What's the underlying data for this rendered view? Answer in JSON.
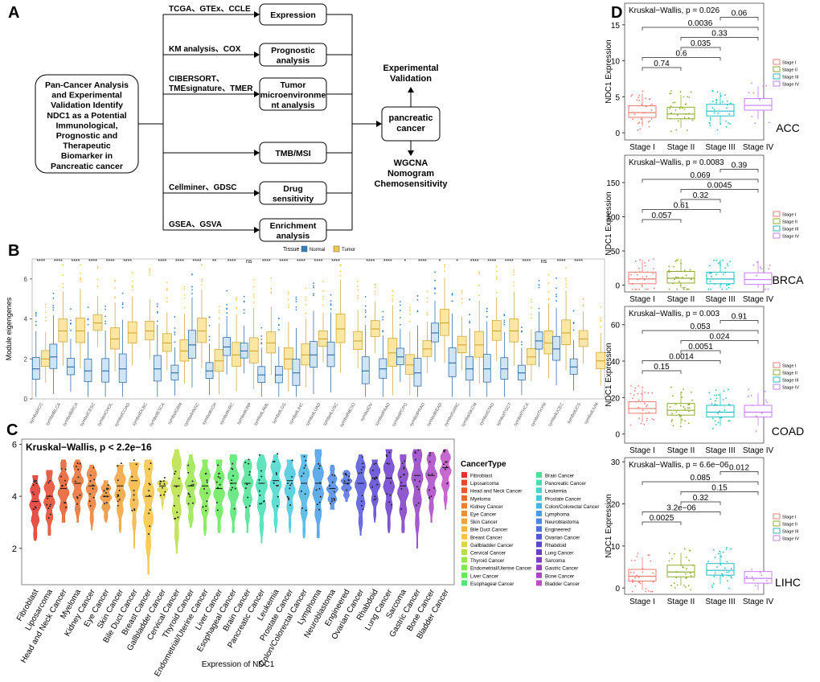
{
  "panel_labels": {
    "a": "A",
    "b": "B",
    "c": "C",
    "d": "D"
  },
  "panelA": {
    "center": [
      "Pan-Cancer Analysis",
      "and Experimental",
      "Validation Identify",
      "NDC1 as a Potential",
      "Immunological,",
      "Prognostic and",
      "Therapeutic",
      "Biomarker in",
      "Pancreatic cancer"
    ],
    "rows": [
      {
        "method": "TCGA、GTEx、CCLE",
        "box": [
          "Expression"
        ]
      },
      {
        "method": "KM analysis、COX",
        "box": [
          "Prognostic",
          "analysis"
        ]
      },
      {
        "method": [
          "CIBERSORT、",
          "TMEsignature、TMER"
        ],
        "box": [
          "Tumor",
          "microenvironme",
          "nt analysis"
        ]
      },
      {
        "method": "",
        "box": [
          "TMB/MSI"
        ]
      },
      {
        "method": "Cellminer、GDSC",
        "box": [
          "Drug",
          "sensitivity"
        ]
      },
      {
        "method": "GSEA、GSVA",
        "box": [
          "Enrichment",
          "analysis"
        ]
      }
    ],
    "hub": [
      "pancreatic",
      "cancer"
    ],
    "up": [
      "Experimental",
      "Validation"
    ],
    "down": [
      "WGCNA",
      "Nomogram",
      "Chemosensitivity"
    ]
  },
  "chart_data": [
    {
      "type": "box",
      "panel": "B",
      "title": "",
      "ylabel": "Module eigengenes",
      "ylim": [
        0,
        7
      ],
      "yticks": [
        0,
        2,
        4,
        6
      ],
      "legend": {
        "title": "Tissue",
        "entries": [
          "Normal",
          "Tumor"
        ],
        "colors": [
          "#2f7fc1",
          "#f2c94c"
        ],
        "placement": "top"
      },
      "categories": [
        "symbolACC",
        "symbolBLCA",
        "symbolBRCA",
        "symbolCESC",
        "symbolCHOL",
        "symbolCOAD",
        "symbolDLBC",
        "symbolESCA",
        "symbolGBM",
        "symbolHNSC",
        "symbolKICH",
        "symbolKIRC",
        "symbolKIRP",
        "symbolLAML",
        "symbolLGG",
        "symbolLIHC",
        "symbolLUAD",
        "symbolLUSC",
        "symbolMESO",
        "symbolOV",
        "symbolPAAD",
        "symbolPCPG",
        "symbolPRAD",
        "symbolREAD",
        "symbolSARC",
        "symbolSKCM",
        "symbolSTAD",
        "symbolTGCT",
        "symbolTHCA",
        "symbolTHYM",
        "symbolUCEC",
        "symbolUCS",
        "symbolUVM"
      ],
      "significance": [
        "****",
        "****",
        "****",
        "****",
        "****",
        "****",
        "",
        "****",
        "****",
        "****",
        "**",
        "****",
        "ns",
        "****",
        "****",
        "****",
        "****",
        "****",
        "",
        "****",
        "****",
        "*",
        "****",
        "*",
        "*",
        "****",
        "****",
        "****",
        "****",
        "ns",
        "****",
        "****",
        ""
      ],
      "series": [
        {
          "name": "Normal",
          "medians": [
            1.5,
            2.1,
            1.6,
            1.4,
            1.4,
            1.5,
            null,
            1.5,
            1.3,
            2.7,
            1.4,
            2.6,
            2.4,
            1.2,
            1.2,
            1.3,
            2.2,
            2.2,
            null,
            1.4,
            1.5,
            2.1,
            1.3,
            3.3,
            1.8,
            1.5,
            1.5,
            1.5,
            1.3,
            2.9,
            2.5,
            1.6,
            null
          ]
        },
        {
          "name": "Tumor",
          "medians": [
            2.0,
            3.4,
            3.4,
            3.8,
            3.0,
            3.3,
            3.4,
            2.8,
            2.4,
            3.4,
            1.9,
            2.2,
            2.4,
            2.8,
            2.0,
            2.2,
            3.0,
            3.5,
            2.9,
            3.5,
            2.3,
            1.7,
            2.5,
            3.8,
            2.7,
            2.7,
            3.4,
            3.4,
            2.1,
            2.8,
            3.3,
            3.0,
            1.9
          ]
        }
      ]
    },
    {
      "type": "violin",
      "panel": "C",
      "title": "Kruskal−Wallis, p < 2.2e−16",
      "xlabel": "Expression of NDC1",
      "ylabel": "",
      "ylim": [
        0.6,
        6.2
      ],
      "yticks": [
        2,
        4,
        6
      ],
      "legend": {
        "title": "CancerType",
        "placement": "right"
      },
      "categories": [
        "Fibroblast",
        "Liposarcoma",
        "Head and Neck Cancer",
        "Myeloma",
        "Kidney Cancer",
        "Eye Cancer",
        "Skin Cancer",
        "Bile Duct Cancer",
        "Breast Cancer",
        "Gallbladder Cancer",
        "Cervical Cancer",
        "Thyroid Cancer",
        "Endometrial/Uterine Cancer",
        "Liver Cancer",
        "Esophageal Cancer",
        "Brain Cancer",
        "Pancreatic Cancer",
        "Leukemia",
        "Prostate Cancer",
        "Colon/Colorectal Cancer",
        "Lymphoma",
        "Neuroblastoma",
        "Engineered",
        "Ovarian Cancer",
        "Rhabdoid",
        "Lung Cancer",
        "Sarcoma",
        "Gastric Cancer",
        "Bone Cancer",
        "Bladder Cancer"
      ],
      "medians": [
        3.8,
        4.0,
        4.3,
        4.5,
        4.4,
        4.0,
        4.4,
        4.6,
        4.0,
        4.4,
        4.4,
        4.4,
        4.4,
        4.3,
        4.5,
        4.5,
        4.5,
        4.6,
        4.6,
        4.5,
        4.5,
        4.3,
        4.5,
        4.5,
        4.7,
        4.7,
        4.4,
        4.8,
        4.8,
        5.1
      ],
      "min": [
        2.3,
        2.5,
        3.0,
        3.0,
        2.7,
        3.0,
        2.6,
        2.0,
        1.0,
        3.5,
        1.8,
        2.8,
        2.5,
        2.6,
        2.6,
        2.6,
        2.2,
        2.6,
        2.6,
        2.4,
        2.4,
        3.5,
        3.8,
        2.5,
        3.0,
        2.6,
        2.6,
        2.0,
        3.0,
        3.5
      ],
      "max": [
        4.8,
        5.0,
        5.4,
        5.4,
        5.2,
        4.6,
        5.2,
        5.3,
        5.4,
        4.6,
        5.8,
        5.6,
        5.4,
        5.4,
        5.6,
        5.4,
        5.6,
        5.6,
        5.4,
        5.6,
        5.8,
        5.2,
        5.0,
        5.6,
        5.4,
        5.8,
        5.6,
        5.8,
        5.7,
        5.8
      ],
      "colors": [
        "#e4312b",
        "#e4472b",
        "#e65a2c",
        "#e96b2e",
        "#ec7d31",
        "#ef8f33",
        "#f2a237",
        "#f5b43b",
        "#f7c43e",
        "#dcd643",
        "#b8e046",
        "#99e64b",
        "#7de84f",
        "#66ea58",
        "#53e672",
        "#4ae393",
        "#45dfb3",
        "#44d8cd",
        "#44c9de",
        "#46b4e4",
        "#479ee6",
        "#4a87e6",
        "#4d70e3",
        "#5256dc",
        "#5a45d4",
        "#6a3ccc",
        "#7e3cc8",
        "#9340c4",
        "#a946c5",
        "#bd4fc5"
      ]
    },
    {
      "type": "box",
      "panel": "D",
      "subtitle": "ACC",
      "title": "Kruskal−Wallis, p = 0.026",
      "ylabel": "NDC1 Expression",
      "categories": [
        "Stage I",
        "Stage II",
        "Stage III",
        "Stage IV"
      ],
      "medians": [
        2.8,
        2.6,
        3.0,
        3.8
      ],
      "ylim": [
        -1,
        18
      ],
      "yticks": [
        0,
        5,
        10,
        15
      ],
      "comparisons": [
        {
          "pair": [
            0,
            1
          ],
          "p": "0.74"
        },
        {
          "pair": [
            0,
            2
          ],
          "p": "0.6"
        },
        {
          "pair": [
            1,
            2
          ],
          "p": "0.035"
        },
        {
          "pair": [
            1,
            3
          ],
          "p": "0.33"
        },
        {
          "pair": [
            0,
            3
          ],
          "p": "0.0036"
        },
        {
          "pair": [
            2,
            3
          ],
          "p": "0.06"
        }
      ],
      "legend": [
        "Stage I",
        "Stage II",
        "Stage III",
        "Stage IV"
      ]
    },
    {
      "type": "box",
      "panel": "D",
      "subtitle": "BRCA",
      "title": "Kruskal−Wallis, p = 0.0083",
      "ylabel": "NDC1 Expression",
      "categories": [
        "Stage I",
        "Stage II",
        "Stage III",
        "Stage IV"
      ],
      "medians": [
        9,
        10,
        9,
        8
      ],
      "ylim": [
        -10,
        190
      ],
      "yticks": [
        0,
        50,
        100,
        150
      ],
      "comparisons": [
        {
          "pair": [
            0,
            1
          ],
          "p": "0.057"
        },
        {
          "pair": [
            0,
            2
          ],
          "p": "0.61"
        },
        {
          "pair": [
            1,
            2
          ],
          "p": "0.32"
        },
        {
          "pair": [
            1,
            3
          ],
          "p": "0.0045"
        },
        {
          "pair": [
            0,
            3
          ],
          "p": "0.069"
        },
        {
          "pair": [
            2,
            3
          ],
          "p": "0.39"
        }
      ],
      "legend": [
        "Stage I",
        "Stage II",
        "Stage III",
        "Stage IV"
      ]
    },
    {
      "type": "box",
      "panel": "D",
      "subtitle": "COAD",
      "title": "Kruskal−Wallis, p = 0.003",
      "ylabel": "NDC1 Expression",
      "categories": [
        "Stage I",
        "Stage II",
        "Stage III",
        "Stage IV"
      ],
      "medians": [
        14,
        13,
        12,
        12
      ],
      "ylim": [
        -5,
        70
      ],
      "yticks": [
        0,
        20,
        40,
        60
      ],
      "comparisons": [
        {
          "pair": [
            0,
            1
          ],
          "p": "0.15"
        },
        {
          "pair": [
            0,
            2
          ],
          "p": "0.0014"
        },
        {
          "pair": [
            1,
            2
          ],
          "p": "0.0051"
        },
        {
          "pair": [
            1,
            3
          ],
          "p": "0.024"
        },
        {
          "pair": [
            0,
            3
          ],
          "p": "0.053"
        },
        {
          "pair": [
            2,
            3
          ],
          "p": "0.91"
        }
      ],
      "legend": [
        "Stage I",
        "Stage II",
        "Stage III",
        "Stage IV"
      ]
    },
    {
      "type": "box",
      "panel": "D",
      "subtitle": "LIHC",
      "title": "Kruskal−Wallis, p = 6.6e−06",
      "ylabel": "NDC1 Expression",
      "categories": [
        "Stage I",
        "Stage II",
        "Stage III",
        "Stage IV"
      ],
      "medians": [
        2.8,
        3.8,
        4.2,
        2.3
      ],
      "ylim": [
        -1.5,
        31
      ],
      "yticks": [
        0,
        10,
        20,
        30
      ],
      "comparisons": [
        {
          "pair": [
            0,
            1
          ],
          "p": "0.0025"
        },
        {
          "pair": [
            0,
            2
          ],
          "p": "3.2e−06"
        },
        {
          "pair": [
            1,
            2
          ],
          "p": "0.32"
        },
        {
          "pair": [
            1,
            3
          ],
          "p": "0.15"
        },
        {
          "pair": [
            0,
            3
          ],
          "p": "0.085"
        },
        {
          "pair": [
            2,
            3
          ],
          "p": "0.012"
        }
      ],
      "legend": [
        "Stage I",
        "Stage II",
        "Stage III",
        "Stage IV"
      ]
    }
  ],
  "stage_colors": [
    "#f07a74",
    "#8dad2a",
    "#1fbfc5",
    "#c77cff"
  ]
}
